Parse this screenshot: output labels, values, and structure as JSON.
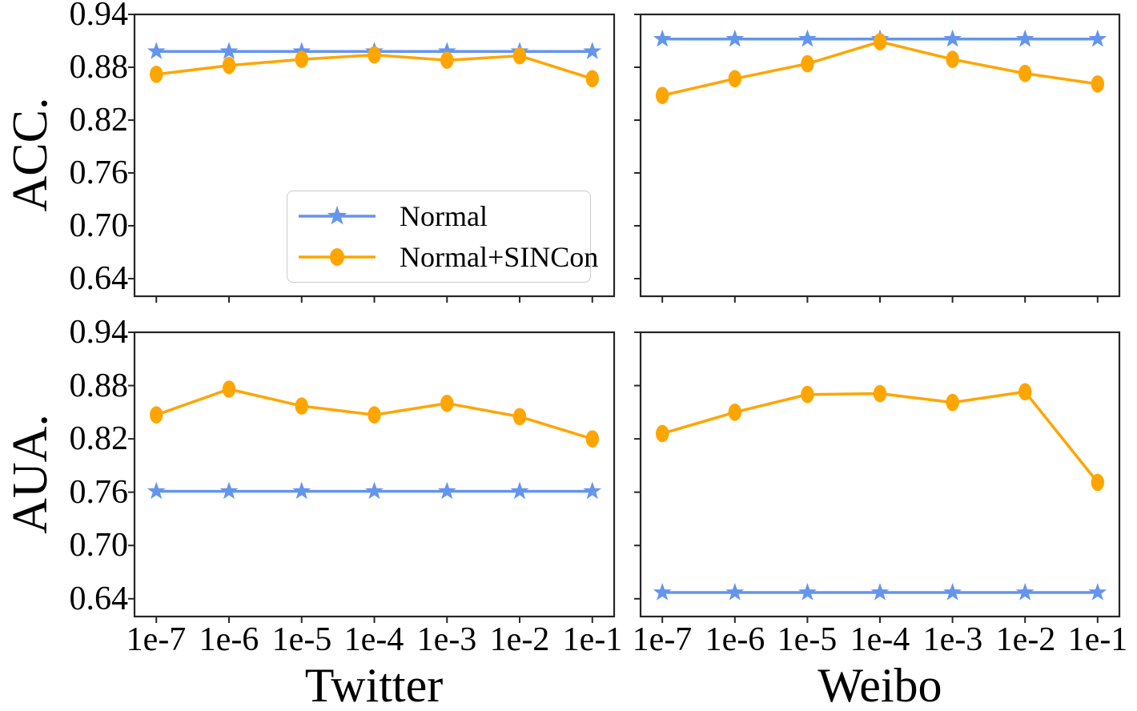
{
  "figure": {
    "metric_label_top": "ACC.",
    "metric_label_bottom": "AUA.",
    "dataset_label_left": "Twitter",
    "dataset_label_right": "Weibo",
    "ytick_labels": [
      "0.94",
      "0.88",
      "0.82",
      "0.76",
      "0.70",
      "0.64"
    ],
    "xtick_labels": [
      "1e-7",
      "1e-6",
      "1e-5",
      "1e-4",
      "1e-3",
      "1e-2",
      "1e-1"
    ],
    "axis_color": "#262626",
    "background_color": "#ffffff"
  },
  "legend": {
    "position": "inside top-left subplot, lower center",
    "items": [
      {
        "label": "Normal",
        "color": "#6495ED",
        "marker": "star"
      },
      {
        "label": "Normal+SINCon",
        "color": "#FFA500",
        "marker": "circle"
      }
    ]
  },
  "chart_data": [
    {
      "id": "acc-twitter",
      "type": "line",
      "metric": "ACC.",
      "dataset": "Twitter",
      "categories": [
        "1e-7",
        "1e-6",
        "1e-5",
        "1e-4",
        "1e-3",
        "1e-2",
        "1e-1"
      ],
      "xlabel": "Twitter",
      "ylabel": "ACC.",
      "ylim": [
        0.62,
        0.94
      ],
      "yticks": [
        0.94,
        0.88,
        0.82,
        0.76,
        0.7,
        0.64
      ],
      "grid": false,
      "series": [
        {
          "name": "Normal",
          "color": "#6495ED",
          "marker": "star",
          "values": [
            0.898,
            0.898,
            0.898,
            0.898,
            0.898,
            0.898,
            0.898
          ]
        },
        {
          "name": "Normal+SINCon",
          "color": "#FFA500",
          "marker": "circle",
          "values": [
            0.872,
            0.882,
            0.889,
            0.894,
            0.888,
            0.893,
            0.867
          ]
        }
      ]
    },
    {
      "id": "acc-weibo",
      "type": "line",
      "metric": "ACC.",
      "dataset": "Weibo",
      "categories": [
        "1e-7",
        "1e-6",
        "1e-5",
        "1e-4",
        "1e-3",
        "1e-2",
        "1e-1"
      ],
      "xlabel": "Weibo",
      "ylabel": "ACC.",
      "ylim": [
        0.62,
        0.94
      ],
      "yticks": [
        0.94,
        0.88,
        0.82,
        0.76,
        0.7,
        0.64
      ],
      "grid": false,
      "series": [
        {
          "name": "Normal",
          "color": "#6495ED",
          "marker": "star",
          "values": [
            0.912,
            0.912,
            0.912,
            0.912,
            0.912,
            0.912,
            0.912
          ]
        },
        {
          "name": "Normal+SINCon",
          "color": "#FFA500",
          "marker": "circle",
          "values": [
            0.848,
            0.867,
            0.884,
            0.909,
            0.889,
            0.873,
            0.861
          ]
        }
      ]
    },
    {
      "id": "aua-twitter",
      "type": "line",
      "metric": "AUA.",
      "dataset": "Twitter",
      "categories": [
        "1e-7",
        "1e-6",
        "1e-5",
        "1e-4",
        "1e-3",
        "1e-2",
        "1e-1"
      ],
      "xlabel": "Twitter",
      "ylabel": "AUA.",
      "ylim": [
        0.62,
        0.94
      ],
      "yticks": [
        0.94,
        0.88,
        0.82,
        0.76,
        0.7,
        0.64
      ],
      "grid": false,
      "series": [
        {
          "name": "Normal",
          "color": "#6495ED",
          "marker": "star",
          "values": [
            0.761,
            0.761,
            0.761,
            0.761,
            0.761,
            0.761,
            0.761
          ]
        },
        {
          "name": "Normal+SINCon",
          "color": "#FFA500",
          "marker": "circle",
          "values": [
            0.847,
            0.876,
            0.857,
            0.847,
            0.86,
            0.845,
            0.82
          ]
        }
      ]
    },
    {
      "id": "aua-weibo",
      "type": "line",
      "metric": "AUA.",
      "dataset": "Weibo",
      "categories": [
        "1e-7",
        "1e-6",
        "1e-5",
        "1e-4",
        "1e-3",
        "1e-2",
        "1e-1"
      ],
      "xlabel": "Weibo",
      "ylabel": "AUA.",
      "ylim": [
        0.62,
        0.94
      ],
      "yticks": [
        0.94,
        0.88,
        0.82,
        0.76,
        0.7,
        0.64
      ],
      "grid": false,
      "series": [
        {
          "name": "Normal",
          "color": "#6495ED",
          "marker": "star",
          "values": [
            0.647,
            0.647,
            0.647,
            0.647,
            0.647,
            0.647,
            0.647
          ]
        },
        {
          "name": "Normal+SINCon",
          "color": "#FFA500",
          "marker": "circle",
          "values": [
            0.826,
            0.85,
            0.87,
            0.871,
            0.861,
            0.873,
            0.771
          ]
        }
      ]
    }
  ]
}
